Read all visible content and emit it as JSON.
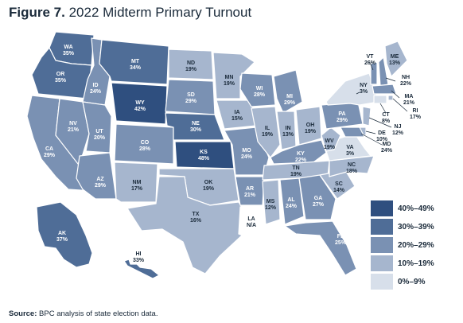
{
  "title": {
    "figure": "Figure 7.",
    "text": "2022 Midterm Primary Turnout"
  },
  "source": {
    "label": "Source:",
    "text": "BPC analysis of state election data."
  },
  "legend": [
    {
      "label": "40%–49%",
      "color": "#2f4f7f"
    },
    {
      "label": "30%–39%",
      "color": "#4f6d97"
    },
    {
      "label": "20%–29%",
      "color": "#7a91b3"
    },
    {
      "label": "10%–19%",
      "color": "#a6b6ce"
    },
    {
      "label": "0%–9%",
      "color": "#d7dfea"
    }
  ],
  "states": [
    {
      "code": "WA",
      "value": "35%"
    },
    {
      "code": "OR",
      "value": "35%"
    },
    {
      "code": "CA",
      "value": "29%"
    },
    {
      "code": "ID",
      "value": "24%"
    },
    {
      "code": "NV",
      "value": "21%"
    },
    {
      "code": "UT",
      "value": "20%"
    },
    {
      "code": "AZ",
      "value": "29%"
    },
    {
      "code": "MT",
      "value": "34%"
    },
    {
      "code": "WY",
      "value": "42%"
    },
    {
      "code": "CO",
      "value": "28%"
    },
    {
      "code": "NM",
      "value": "17%"
    },
    {
      "code": "ND",
      "value": "19%"
    },
    {
      "code": "SD",
      "value": "29%"
    },
    {
      "code": "NE",
      "value": "30%"
    },
    {
      "code": "KS",
      "value": "48%"
    },
    {
      "code": "OK",
      "value": "19%"
    },
    {
      "code": "TX",
      "value": "16%"
    },
    {
      "code": "MN",
      "value": "19%"
    },
    {
      "code": "IA",
      "value": "15%"
    },
    {
      "code": "MO",
      "value": "24%"
    },
    {
      "code": "AR",
      "value": "21%"
    },
    {
      "code": "LA",
      "value": "N/A"
    },
    {
      "code": "WI",
      "value": "28%"
    },
    {
      "code": "IL",
      "value": "19%"
    },
    {
      "code": "MI",
      "value": "29%"
    },
    {
      "code": "IN",
      "value": "13%"
    },
    {
      "code": "OH",
      "value": "19%"
    },
    {
      "code": "KY",
      "value": "22%"
    },
    {
      "code": "TN",
      "value": "19%"
    },
    {
      "code": "MS",
      "value": "12%"
    },
    {
      "code": "AL",
      "value": "24%"
    },
    {
      "code": "GA",
      "value": "27%"
    },
    {
      "code": "FL",
      "value": "25%"
    },
    {
      "code": "SC",
      "value": "14%"
    },
    {
      "code": "NC",
      "value": "18%"
    },
    {
      "code": "VA",
      "value": "3%"
    },
    {
      "code": "WV",
      "value": "19%"
    },
    {
      "code": "PA",
      "value": "29%"
    },
    {
      "code": "NY",
      "value": "3%"
    },
    {
      "code": "VT",
      "value": "26%"
    },
    {
      "code": "NH",
      "value": "22%"
    },
    {
      "code": "ME",
      "value": "13%"
    },
    {
      "code": "MA",
      "value": "21%"
    },
    {
      "code": "RI",
      "value": "17%"
    },
    {
      "code": "CT",
      "value": "8%"
    },
    {
      "code": "NJ",
      "value": "12%"
    },
    {
      "code": "DE",
      "value": "10%"
    },
    {
      "code": "MD",
      "value": "24%"
    },
    {
      "code": "AK",
      "value": "37%"
    },
    {
      "code": "HI",
      "value": "33%"
    }
  ]
}
